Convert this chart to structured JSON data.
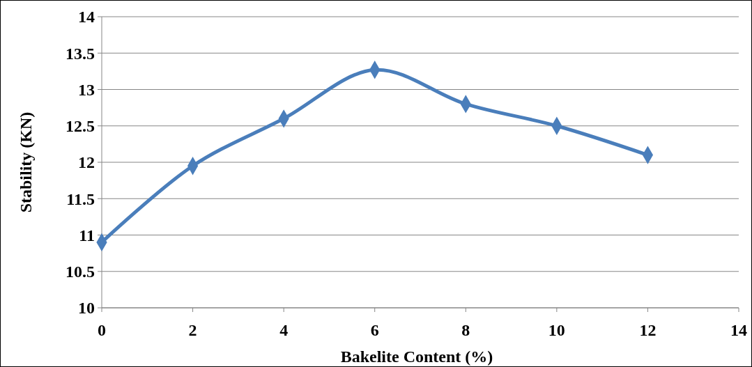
{
  "chart_data": {
    "type": "line",
    "xlabel": "Bakelite Content (%)",
    "ylabel": "Stability (KN)",
    "x": [
      0,
      2,
      4,
      6,
      8,
      10,
      12
    ],
    "series": [
      {
        "color": "#4a7ebb",
        "values": [
          10.9,
          11.95,
          12.6,
          13.27,
          12.8,
          12.5,
          12.1
        ]
      }
    ],
    "xlim": [
      0,
      14
    ],
    "xticks": [
      0,
      2,
      4,
      6,
      8,
      10,
      12,
      14
    ],
    "ylim": [
      10,
      14
    ],
    "yticks": [
      10,
      10.5,
      11,
      11.5,
      12,
      12.5,
      13,
      13.5,
      14
    ],
    "grid": "y",
    "marker": "diamond",
    "line_style": "solid"
  }
}
